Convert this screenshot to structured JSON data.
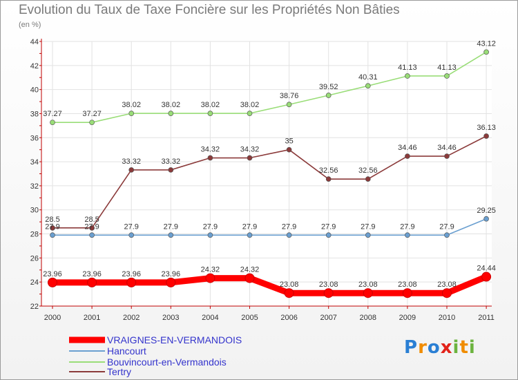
{
  "title": "Evolution du Taux de Taxe Foncière sur les Propriétés Non Bâties",
  "subtitle": "(en %)",
  "logo": {
    "text": "Proxiti",
    "letters": [
      "P",
      "r",
      "o",
      "x",
      "i",
      "t",
      "i"
    ],
    "colors": [
      "#2a7fd4",
      "#f08c00",
      "#2a7fd4",
      "#e2231a",
      "#6cb33f",
      "#f08c00",
      "#6cb33f"
    ]
  },
  "chart_data": {
    "type": "line",
    "title": "Evolution du Taux de Taxe Foncière sur les Propriétés Non Bâties",
    "ylabel": "(en %)",
    "xlabel": "",
    "ylim": [
      22,
      44
    ],
    "yticks": [
      22,
      24,
      26,
      28,
      30,
      32,
      34,
      36,
      38,
      40,
      42,
      44
    ],
    "grid": true,
    "legend_position": "bottom-left",
    "x": [
      "2000",
      "2001",
      "2002",
      "2003",
      "2004",
      "2005",
      "2006",
      "2007",
      "2008",
      "2009",
      "2010",
      "2011"
    ],
    "series": [
      {
        "name": "VRAIGNES-EN-VERMANDOIS",
        "color": "#ff0000",
        "width": "thick",
        "values": [
          23.96,
          23.96,
          23.96,
          23.96,
          24.32,
          24.32,
          23.08,
          23.08,
          23.08,
          23.08,
          23.08,
          24.44
        ],
        "labels": [
          "23.96",
          "23.96",
          "23.96",
          "23.96",
          "24.32",
          "24.32",
          "23.08",
          "23.08",
          "23.08",
          "23.08",
          "23.08",
          "24.44"
        ]
      },
      {
        "name": "Hancourt",
        "color": "#6a9fd0",
        "width": "thin",
        "values": [
          27.9,
          27.9,
          27.9,
          27.9,
          27.9,
          27.9,
          27.9,
          27.9,
          27.9,
          27.9,
          27.9,
          29.25
        ],
        "labels": [
          "27.9",
          "27.9",
          "27.9",
          "27.9",
          "27.9",
          "27.9",
          "27.9",
          "27.9",
          "27.9",
          "27.9",
          "27.9",
          "29.25"
        ]
      },
      {
        "name": "Bouvincourt-en-Vermandois",
        "color": "#99dd77",
        "width": "thin",
        "values": [
          37.27,
          37.27,
          38.02,
          38.02,
          38.02,
          38.02,
          38.76,
          39.52,
          40.31,
          41.13,
          41.13,
          43.12
        ],
        "labels": [
          "37.27",
          "37.27",
          "38.02",
          "38.02",
          "38.02",
          "38.02",
          "38.76",
          "39.52",
          "40.31",
          "41.13",
          "41.13",
          "43.12"
        ]
      },
      {
        "name": "Tertry",
        "color": "#8b3a3a",
        "width": "thin",
        "values": [
          28.5,
          28.5,
          33.32,
          33.32,
          34.32,
          34.32,
          35,
          32.56,
          32.56,
          34.46,
          34.46,
          36.13
        ],
        "labels": [
          "28.5",
          "28.5",
          "33.32",
          "33.32",
          "34.32",
          "34.32",
          "35",
          "32.56",
          "32.56",
          "34.46",
          "34.46",
          "36.13"
        ]
      }
    ]
  }
}
